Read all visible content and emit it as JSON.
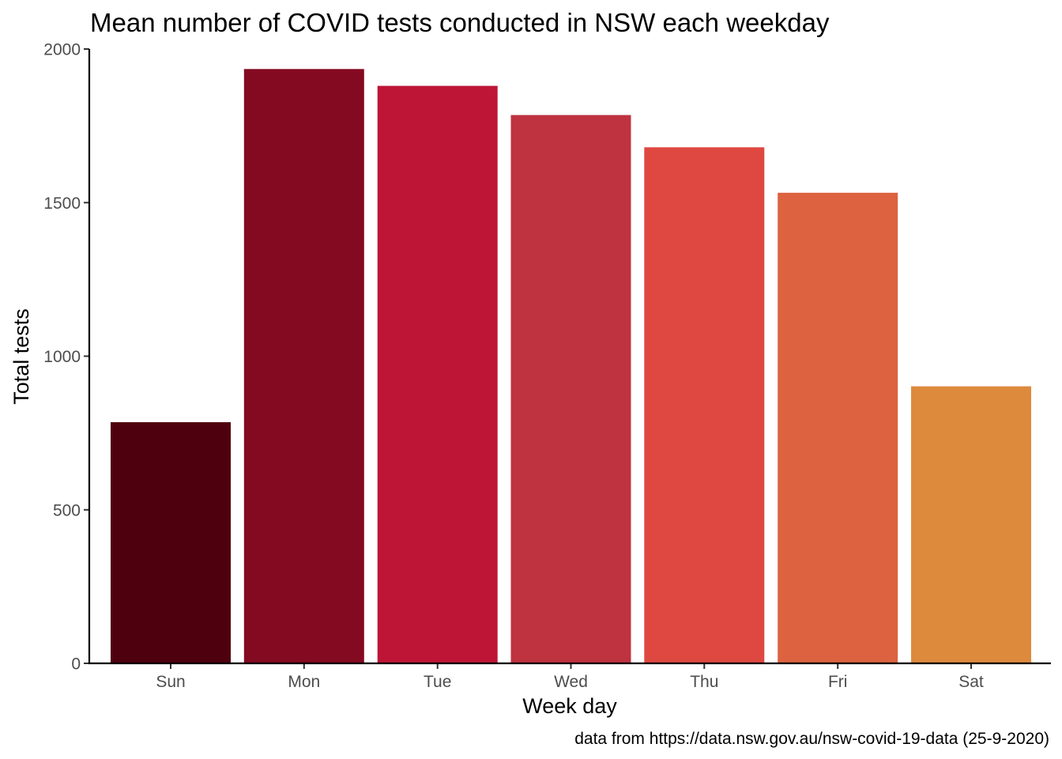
{
  "chart_data": {
    "type": "bar",
    "title": "Mean number of COVID tests conducted in NSW each weekday",
    "xlabel": "Week day",
    "ylabel": "Total tests",
    "caption": "data from https://data.nsw.gov.au/nsw-covid-19-data (25-9-2020)",
    "categories": [
      "Sun",
      "Mon",
      "Tue",
      "Wed",
      "Thu",
      "Fri",
      "Sat"
    ],
    "values": [
      785,
      1935,
      1880,
      1785,
      1680,
      1532,
      902
    ],
    "colors": [
      "#4f000f",
      "#840a21",
      "#be1536",
      "#bf323f",
      "#de4840",
      "#dd6240",
      "#de8a3d"
    ],
    "ylim": [
      0,
      2000
    ],
    "yticks": [
      0,
      500,
      1000,
      1500,
      2000
    ],
    "grid": false,
    "legend": "none"
  }
}
